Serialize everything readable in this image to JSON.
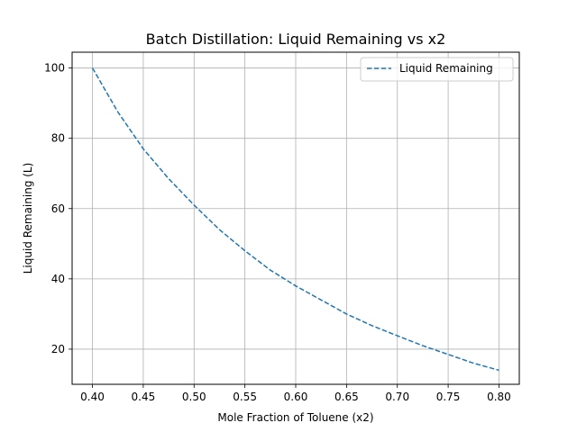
{
  "chart_data": {
    "type": "line",
    "title": "Batch Distillation: Liquid Remaining vs x2",
    "xlabel": "Mole Fraction of Toluene (x2)",
    "ylabel": "Liquid Remaining (L)",
    "xlim": [
      0.38,
      0.82
    ],
    "ylim": [
      10,
      104.5
    ],
    "grid": true,
    "legend_position": "top-right",
    "x_ticks": [
      0.4,
      0.45,
      0.5,
      0.55,
      0.6,
      0.65,
      0.7,
      0.75,
      0.8
    ],
    "x_tick_labels": [
      "0.40",
      "0.45",
      "0.50",
      "0.55",
      "0.60",
      "0.65",
      "0.70",
      "0.75",
      "0.80"
    ],
    "y_ticks": [
      20,
      40,
      60,
      80,
      100
    ],
    "y_tick_labels": [
      "20",
      "40",
      "60",
      "80",
      "100"
    ],
    "series": [
      {
        "name": "Liquid Remaining",
        "color": "#1f77b4",
        "line_style": "dashed",
        "x": [
          0.4,
          0.425,
          0.45,
          0.475,
          0.5,
          0.525,
          0.55,
          0.575,
          0.6,
          0.625,
          0.65,
          0.675,
          0.7,
          0.725,
          0.75,
          0.775,
          0.8
        ],
        "y": [
          100,
          87.5,
          77.0,
          68.5,
          61.0,
          54.0,
          48.0,
          42.5,
          38.0,
          34.0,
          30.0,
          26.7,
          23.8,
          21.0,
          18.5,
          16.0,
          14.0
        ]
      }
    ]
  }
}
